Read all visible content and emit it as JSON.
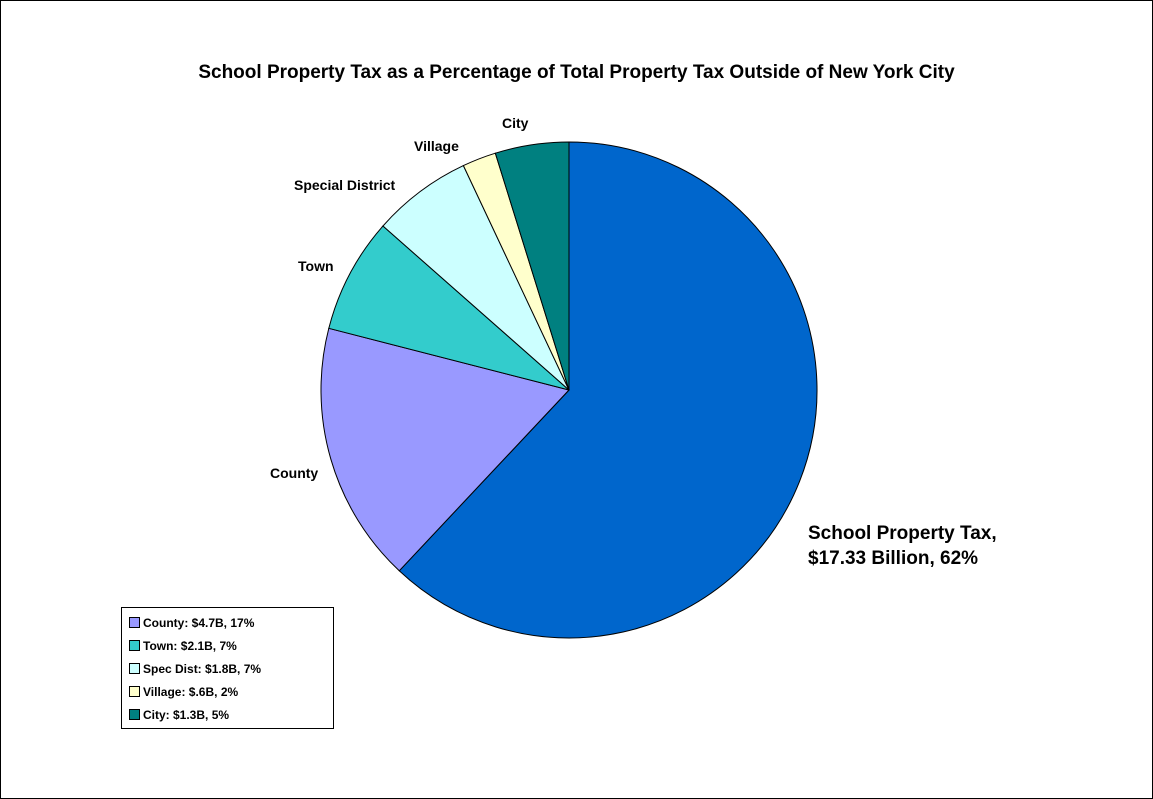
{
  "chart_data": {
    "type": "pie",
    "title": "School Property Tax as a Percentage of Total Property Tax Outside of New York City",
    "slices": [
      {
        "label": "School Property Tax,",
        "label_line2": "$17.33 Billion, 62%",
        "value": 62.0,
        "color": "#0066cc"
      },
      {
        "label": "County",
        "value": 17.0,
        "color": "#9999ff"
      },
      {
        "label": "Town",
        "value": 7.5,
        "color": "#33cccc"
      },
      {
        "label": "Special District",
        "value": 6.5,
        "color": "#ccffff"
      },
      {
        "label": "Village",
        "value": 2.2,
        "color": "#ffffcc"
      },
      {
        "label": "City",
        "value": 4.8,
        "color": "#008080"
      }
    ],
    "legend": [
      {
        "text": "County: $4.7B, 17%",
        "color": "#9999ff"
      },
      {
        "text": "Town: $2.1B, 7%",
        "color": "#33cccc"
      },
      {
        "text": "Spec Dist: $1.8B, 7%",
        "color": "#ccffff"
      },
      {
        "text": "Village: $.6B, 2%",
        "color": "#ffffcc"
      },
      {
        "text": "City: $1.3B, 5%",
        "color": "#008080"
      }
    ],
    "legend_position": "bottom-left"
  }
}
